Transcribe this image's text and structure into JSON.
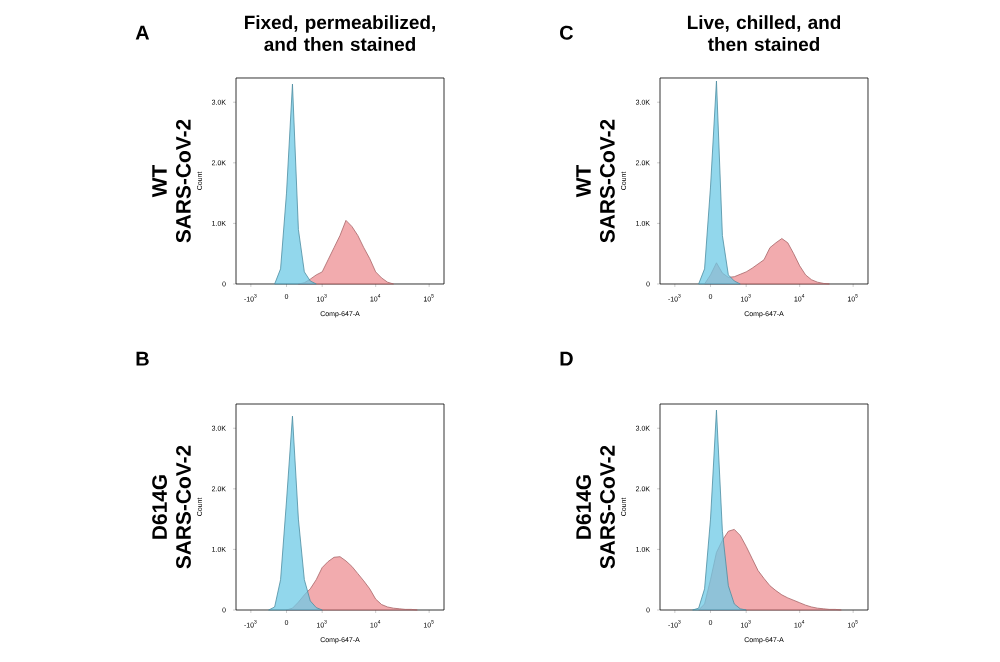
{
  "chart_data": [
    {
      "type": "area",
      "title": "Fixed, permeabilized, and then stained",
      "ylabel": "Count",
      "xlabel": "Comp-647-A",
      "annotations": [
        "A",
        "WT",
        "SARS-CoV-2"
      ],
      "categories": [
        null,
        null,
        "-10$^{3}$",
        null,
        null,
        null,
        null,
        null,
        "0",
        null,
        null,
        null,
        null,
        null,
        "10$^{3}$",
        null,
        null,
        null,
        null,
        null,
        null,
        null,
        null,
        "10$^{4}$",
        null,
        null,
        null,
        null,
        null,
        null,
        null,
        null,
        "10$^{5}$",
        null,
        null
      ],
      "ylim": [
        0,
        3400
      ],
      "yticks": [
        0,
        {
          "value": 1000,
          "label": "1.0K"
        },
        {
          "value": 2000,
          "label": "2.0K"
        },
        {
          "value": 3000,
          "label": "3.0K"
        }
      ],
      "series": [
        {
          "color": "#ee8f93",
          "values": [
            null,
            null,
            null,
            null,
            null,
            null,
            null,
            null,
            null,
            null,
            0,
            20,
            80,
            150,
            200,
            400,
            600,
            800,
            1050,
            950,
            800,
            600,
            420,
            200,
            100,
            30,
            0,
            null,
            null,
            null,
            null,
            null,
            null,
            null,
            null
          ]
        },
        {
          "color": "#6ec9e6",
          "values": [
            null,
            null,
            null,
            null,
            null,
            null,
            0,
            250,
            1500,
            3300,
            900,
            200,
            50,
            0,
            null,
            null,
            null,
            null,
            null,
            null,
            null,
            null,
            null,
            null,
            null,
            null,
            null,
            null,
            null,
            null,
            null,
            null,
            null,
            null,
            null
          ]
        }
      ]
    },
    {
      "type": "area",
      "ylabel": "Count",
      "xlabel": "Comp-647-A",
      "annotations": [
        "B",
        "D614G",
        "SARS-CoV-2"
      ],
      "categories": [
        null,
        null,
        "-10$^{3}$",
        null,
        null,
        null,
        null,
        null,
        "0",
        null,
        null,
        null,
        null,
        null,
        "10$^{3}$",
        null,
        null,
        null,
        null,
        null,
        null,
        null,
        null,
        "10$^{4}$",
        null,
        null,
        null,
        null,
        null,
        null,
        null,
        null,
        "10$^{5}$",
        null,
        null
      ],
      "ylim": [
        0,
        3400
      ],
      "yticks": [
        0,
        {
          "value": 1000,
          "label": "1.0K"
        },
        {
          "value": 2000,
          "label": "2.0K"
        },
        {
          "value": 3000,
          "label": "3.0K"
        }
      ],
      "series": [
        {
          "color": "#ee8f93",
          "values": [
            null,
            null,
            null,
            null,
            null,
            null,
            null,
            null,
            0,
            30,
            130,
            250,
            350,
            500,
            700,
            800,
            870,
            880,
            810,
            720,
            600,
            480,
            350,
            180,
            90,
            50,
            30,
            20,
            10,
            10,
            0,
            null,
            null,
            null,
            null
          ]
        },
        {
          "color": "#6ec9e6",
          "values": [
            null,
            null,
            null,
            null,
            null,
            0,
            50,
            500,
            1800,
            3200,
            1500,
            500,
            150,
            40,
            0,
            null,
            null,
            null,
            null,
            null,
            null,
            null,
            null,
            null,
            null,
            null,
            null,
            null,
            null,
            null,
            null,
            null,
            null,
            null,
            null
          ]
        }
      ]
    },
    {
      "type": "area",
      "title": "Live, chilled, and then stained",
      "ylabel": "Count",
      "xlabel": "Comp-647-A",
      "annotations": [
        "C",
        "WT",
        "SARS-CoV-2"
      ],
      "categories": [
        null,
        null,
        "-10$^{3}$",
        null,
        null,
        null,
        null,
        null,
        "0",
        null,
        null,
        null,
        null,
        null,
        "10$^{3}$",
        null,
        null,
        null,
        null,
        null,
        null,
        null,
        null,
        "10$^{4}$",
        null,
        null,
        null,
        null,
        null,
        null,
        null,
        null,
        "10$^{5}$",
        null,
        null
      ],
      "ylim": [
        0,
        3400
      ],
      "yticks": [
        0,
        {
          "value": 1000,
          "label": "1.0K"
        },
        {
          "value": 2000,
          "label": "2.0K"
        },
        {
          "value": 3000,
          "label": "3.0K"
        }
      ],
      "series": [
        {
          "color": "#ee8f93",
          "values": [
            null,
            null,
            null,
            null,
            null,
            null,
            null,
            0,
            150,
            350,
            180,
            110,
            120,
            160,
            200,
            260,
            330,
            400,
            600,
            680,
            750,
            680,
            500,
            300,
            150,
            70,
            30,
            10,
            0,
            null,
            null,
            null,
            null,
            null,
            null
          ]
        },
        {
          "color": "#6ec9e6",
          "values": [
            null,
            null,
            null,
            null,
            null,
            null,
            0,
            250,
            1600,
            3350,
            800,
            150,
            50,
            0,
            null,
            null,
            null,
            null,
            null,
            null,
            null,
            null,
            null,
            null,
            null,
            null,
            null,
            null,
            null,
            null,
            null,
            null,
            null,
            null,
            null
          ]
        }
      ]
    },
    {
      "type": "area",
      "ylabel": "Count",
      "xlabel": "Comp-647-A",
      "annotations": [
        "D",
        "D614G",
        "SARS-CoV-2"
      ],
      "categories": [
        null,
        null,
        "-10$^{3}$",
        null,
        null,
        null,
        null,
        null,
        "0",
        null,
        null,
        null,
        null,
        null,
        "10$^{3}$",
        null,
        null,
        null,
        null,
        null,
        null,
        null,
        null,
        "10$^{4}$",
        null,
        null,
        null,
        null,
        null,
        null,
        null,
        null,
        "10$^{5}$",
        null,
        null
      ],
      "ylim": [
        0,
        3400
      ],
      "yticks": [
        0,
        {
          "value": 1000,
          "label": "1.0K"
        },
        {
          "value": 2000,
          "label": "2.0K"
        },
        {
          "value": 3000,
          "label": "3.0K"
        }
      ],
      "series": [
        {
          "color": "#ee8f93",
          "values": [
            null,
            null,
            null,
            null,
            null,
            null,
            0,
            100,
            500,
            950,
            1150,
            1300,
            1330,
            1230,
            1050,
            850,
            650,
            520,
            400,
            320,
            250,
            200,
            160,
            120,
            80,
            50,
            30,
            20,
            10,
            10,
            0,
            null,
            null,
            null,
            null
          ]
        },
        {
          "color": "#6ec9e6",
          "values": [
            null,
            null,
            null,
            null,
            null,
            0,
            30,
            350,
            1500,
            3300,
            1300,
            400,
            100,
            20,
            0,
            null,
            null,
            null,
            null,
            null,
            null,
            null,
            null,
            null,
            null,
            null,
            null,
            null,
            null,
            null,
            null,
            null,
            null,
            null,
            null
          ]
        }
      ]
    }
  ]
}
